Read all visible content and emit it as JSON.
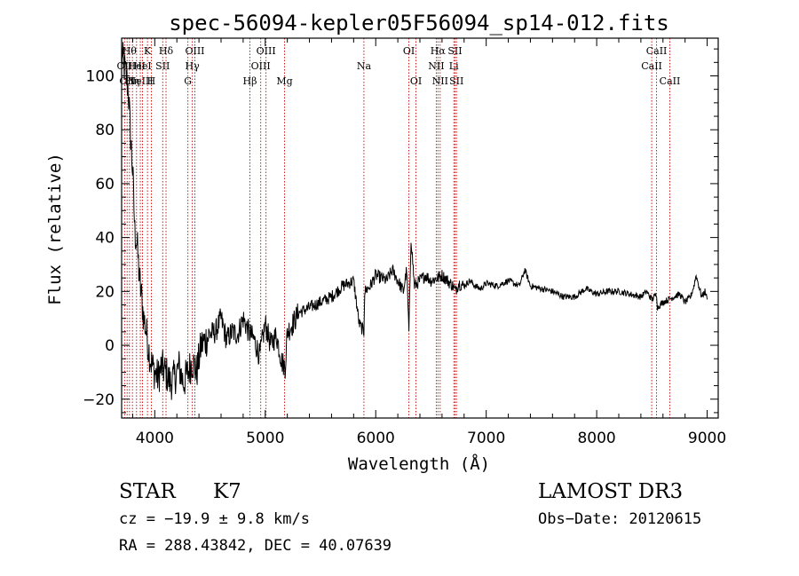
{
  "chart_data": {
    "type": "line",
    "title": "spec-56094-kepler05F56094_sp14-012.fits",
    "xlabel": "Wavelength (Å)",
    "ylabel": "Flux (relative)",
    "xlim": [
      3700,
      9100
    ],
    "ylim": [
      -27,
      114
    ],
    "xticks": [
      4000,
      5000,
      6000,
      7000,
      8000,
      9000
    ],
    "yticks": [
      -20,
      0,
      20,
      40,
      60,
      80,
      100
    ],
    "grid": false,
    "series": [
      {
        "name": "flux",
        "x": [
          3700,
          3720,
          3740,
          3760,
          3780,
          3800,
          3820,
          3840,
          3860,
          3880,
          3900,
          3920,
          3940,
          3960,
          3980,
          4000,
          4030,
          4060,
          4100,
          4140,
          4180,
          4220,
          4260,
          4300,
          4340,
          4380,
          4420,
          4460,
          4500,
          4550,
          4600,
          4650,
          4700,
          4750,
          4800,
          4850,
          4900,
          4950,
          5000,
          5050,
          5100,
          5150,
          5180,
          5200,
          5250,
          5300,
          5400,
          5500,
          5600,
          5700,
          5800,
          5850,
          5893,
          5900,
          5950,
          6000,
          6050,
          6100,
          6150,
          6200,
          6250,
          6280,
          6300,
          6320,
          6350,
          6400,
          6450,
          6500,
          6563,
          6600,
          6650,
          6700,
          6720,
          6750,
          6800,
          6850,
          6900,
          6950,
          7000,
          7100,
          7200,
          7300,
          7350,
          7400,
          7500,
          7600,
          7650,
          7700,
          7800,
          7900,
          8000,
          8100,
          8200,
          8300,
          8400,
          8450,
          8500,
          8542,
          8550,
          8600,
          8650,
          8700,
          8750,
          8800,
          8850,
          8880,
          8900,
          8950,
          8980,
          9000
        ],
        "y": [
          108,
          104,
          100,
          95,
          78,
          65,
          42,
          38,
          25,
          18,
          10,
          6,
          0,
          -5,
          -8,
          -10,
          -12,
          -8,
          -10,
          -14,
          -12,
          -8,
          -14,
          -10,
          -6,
          -10,
          0,
          2,
          4,
          5,
          10,
          2,
          5,
          4,
          10,
          5,
          2,
          -4,
          8,
          0,
          4,
          -6,
          -8,
          5,
          8,
          12,
          14,
          16,
          18,
          22,
          24,
          8,
          5,
          20,
          22,
          26,
          25,
          24,
          28,
          24,
          20,
          28,
          5,
          40,
          22,
          24,
          26,
          24,
          25,
          26,
          24,
          22,
          20,
          23,
          22,
          24,
          22,
          21,
          23,
          22,
          24,
          22,
          28,
          22,
          21,
          20,
          19,
          18,
          18,
          21,
          19,
          20,
          20,
          19,
          18,
          20,
          17,
          19,
          14,
          16,
          17,
          18,
          19,
          16,
          18,
          22,
          26,
          18,
          20,
          17
        ]
      }
    ],
    "lines": [
      {
        "wave": 3727,
        "label": "OII",
        "row": 1
      },
      {
        "wave": 3750,
        "label": "OII",
        "row": 2
      },
      {
        "wave": 3771,
        "label": "Hθ",
        "row": 0
      },
      {
        "wave": 3798,
        "label": "Hη",
        "row": 2
      },
      {
        "wave": 3835,
        "label": "HeI",
        "row": 1
      },
      {
        "wave": 3869,
        "label": "NeIII",
        "row": 2
      },
      {
        "wave": 3889,
        "label": "HeI",
        "row": 1
      },
      {
        "wave": 3934,
        "label": "K",
        "row": 0
      },
      {
        "wave": 3969,
        "label": "H",
        "row": 2
      },
      {
        "wave": 4072,
        "label": "SII",
        "row": 1
      },
      {
        "wave": 4102,
        "label": "Hδ",
        "row": 0
      },
      {
        "wave": 4300,
        "label": "G",
        "row": 2
      },
      {
        "wave": 4340,
        "label": "Hγ",
        "row": 1
      },
      {
        "wave": 4363,
        "label": "OIII",
        "row": 0
      },
      {
        "wave": 4861,
        "label": "Hβ",
        "row": 2
      },
      {
        "wave": 4959,
        "label": "OIII",
        "row": 1
      },
      {
        "wave": 5007,
        "label": "OIII",
        "row": 0
      },
      {
        "wave": 5175,
        "label": "Mg",
        "row": 2
      },
      {
        "wave": 5893,
        "label": "Na",
        "row": 1
      },
      {
        "wave": 6300,
        "label": "OI",
        "row": 0
      },
      {
        "wave": 6364,
        "label": "OI",
        "row": 2
      },
      {
        "wave": 6548,
        "label": "NII",
        "row": 1
      },
      {
        "wave": 6563,
        "label": "Hα",
        "row": 0
      },
      {
        "wave": 6583,
        "label": "NII",
        "row": 2
      },
      {
        "wave": 6707,
        "label": "Li",
        "row": 1
      },
      {
        "wave": 6717,
        "label": "SII",
        "row": 0
      },
      {
        "wave": 6731,
        "label": "SII",
        "row": 2
      },
      {
        "wave": 8498,
        "label": "CaII",
        "row": 1
      },
      {
        "wave": 8542,
        "label": "CaII",
        "row": 0
      },
      {
        "wave": 8662,
        "label": "CaII",
        "row": 2
      }
    ]
  },
  "info": {
    "object_class": "STAR",
    "subclass": "K7",
    "survey": "LAMOST DR3",
    "cz": "cz = −19.9 ± 9.8 km/s",
    "obs_date": "Obs−Date: 20120615",
    "coords": "RA = 288.43842, DEC =  40.07639"
  },
  "colors": {
    "spectrum": "#000000",
    "line_marker": "#cc0000",
    "axes": "#000000"
  }
}
